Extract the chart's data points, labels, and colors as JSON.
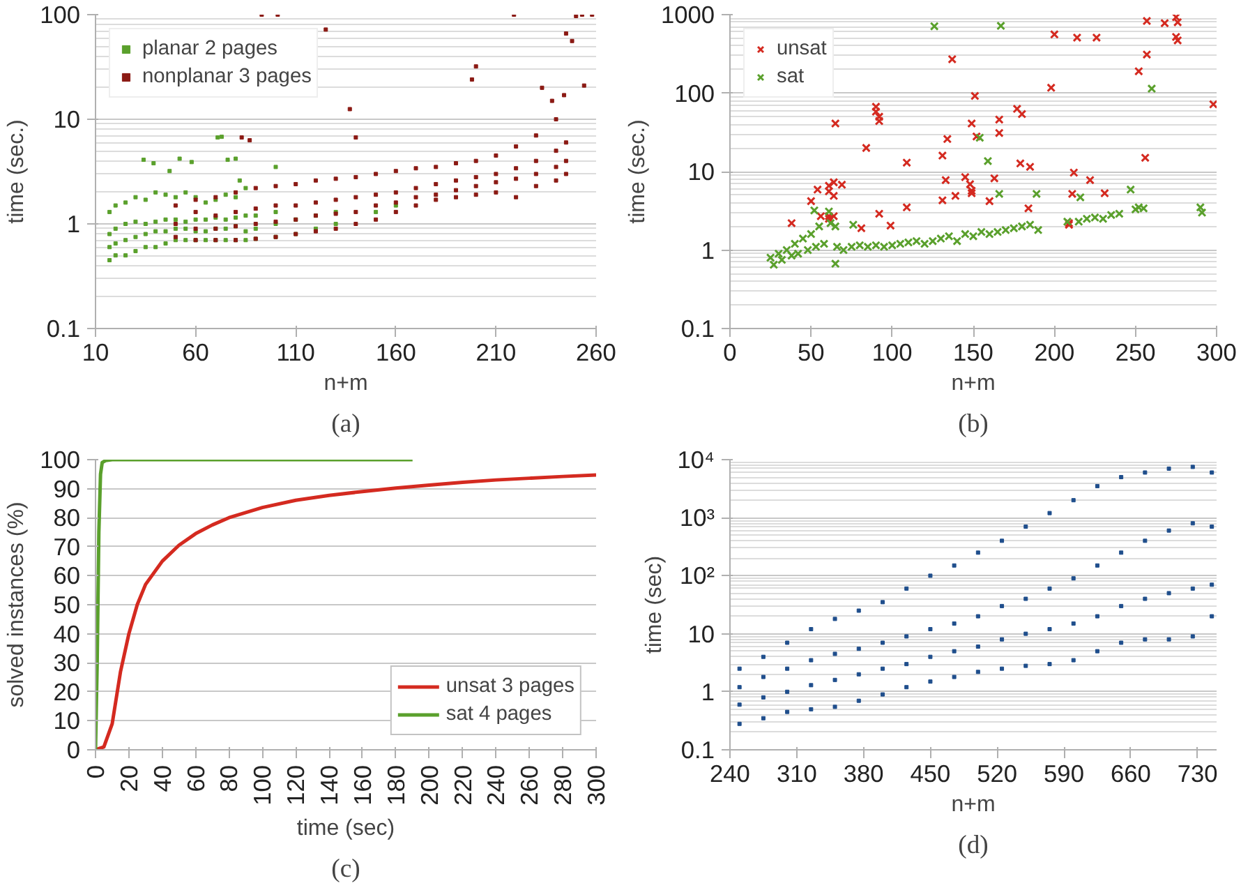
{
  "chart_data": [
    {
      "type": "scatter",
      "xlabel": "n+m",
      "ylabel": "time (sec.)",
      "annotations": [
        "(a)"
      ],
      "xlim": [
        10,
        260
      ],
      "xticks": [
        10,
        60,
        110,
        160,
        210,
        260
      ],
      "ylim": [
        0.1,
        100
      ],
      "yticks": [
        0.1,
        1,
        10,
        100
      ],
      "log": "y",
      "grid": true,
      "legend": "top left",
      "marker": "square",
      "series": [
        {
          "name": "planar 2 pages",
          "color": "#5aa02c",
          "x": [
            17,
            17,
            17,
            17,
            20,
            20,
            20,
            20,
            25,
            25,
            25,
            25,
            30,
            30,
            30,
            30,
            35,
            35,
            35,
            35,
            40,
            40,
            40,
            40,
            45,
            45,
            45,
            45,
            50,
            50,
            50,
            50,
            55,
            55,
            55,
            55,
            60,
            60,
            60,
            60,
            65,
            65,
            65,
            65,
            70,
            70,
            70,
            70,
            75,
            75,
            75,
            75,
            80,
            80,
            80,
            80,
            85,
            85,
            85,
            85,
            90,
            90,
            90,
            100,
            100,
            100,
            110,
            110,
            120,
            120,
            130,
            130,
            150,
            160,
            34,
            39,
            47,
            52,
            58,
            71,
            73,
            76,
            80,
            82,
            100
          ],
          "values": [
            0.45,
            0.6,
            0.8,
            1.3,
            0.5,
            0.65,
            0.9,
            1.5,
            0.5,
            0.7,
            1.0,
            1.6,
            0.55,
            0.75,
            1.05,
            1.8,
            0.6,
            0.8,
            1.0,
            1.7,
            0.6,
            0.85,
            1.05,
            2.0,
            0.65,
            0.85,
            1.1,
            1.9,
            0.7,
            0.9,
            1.1,
            1.8,
            0.7,
            0.9,
            1.05,
            2.0,
            0.7,
            0.85,
            1.1,
            1.8,
            0.7,
            0.85,
            1.1,
            1.6,
            0.7,
            0.9,
            1.15,
            1.7,
            0.7,
            0.9,
            1.1,
            1.9,
            0.7,
            0.95,
            1.15,
            1.8,
            0.7,
            0.85,
            1.2,
            2.2,
            0.72,
            0.9,
            1.2,
            0.75,
            1.0,
            1.3,
            0.8,
            1.1,
            0.9,
            1.2,
            1.0,
            1.3,
            1.3,
            1.5,
            4.1,
            3.8,
            3.2,
            4.2,
            3.9,
            6.7,
            6.8,
            4.1,
            4.2,
            2.6,
            3.5
          ]
        },
        {
          "name": "nonplanar 3 pages",
          "color": "#8b1a14",
          "x": [
            50,
            50,
            50,
            60,
            60,
            60,
            60,
            70,
            70,
            70,
            70,
            80,
            80,
            80,
            80,
            90,
            90,
            90,
            90,
            100,
            100,
            100,
            100,
            110,
            110,
            110,
            110,
            120,
            120,
            120,
            120,
            130,
            130,
            130,
            130,
            140,
            140,
            140,
            140,
            150,
            150,
            150,
            150,
            160,
            160,
            160,
            160,
            170,
            170,
            170,
            170,
            180,
            180,
            180,
            180,
            190,
            190,
            190,
            190,
            200,
            200,
            200,
            200,
            210,
            210,
            210,
            210,
            220,
            220,
            220,
            220,
            230,
            230,
            230,
            230,
            240,
            240,
            240,
            240,
            245,
            245,
            245,
            93,
            101,
            125,
            137,
            140,
            83,
            87,
            200,
            198,
            219,
            233,
            238,
            244,
            245,
            248,
            253,
            258,
            254,
            250
          ],
          "values": [
            0.75,
            1.0,
            1.5,
            0.7,
            0.9,
            1.3,
            1.7,
            0.7,
            0.9,
            1.2,
            1.8,
            0.7,
            0.95,
            1.3,
            2.0,
            0.72,
            1.0,
            1.4,
            2.2,
            0.75,
            1.05,
            1.5,
            2.3,
            0.8,
            1.1,
            1.5,
            2.4,
            0.85,
            1.2,
            1.6,
            2.6,
            0.9,
            1.25,
            1.7,
            2.7,
            1.0,
            1.3,
            1.8,
            2.8,
            1.1,
            1.5,
            1.9,
            3.0,
            1.3,
            1.6,
            2.0,
            3.2,
            1.5,
            1.8,
            2.2,
            3.4,
            1.7,
            1.9,
            2.4,
            3.5,
            1.8,
            2.1,
            2.6,
            3.8,
            1.9,
            2.3,
            2.8,
            4.0,
            2.0,
            2.5,
            3.0,
            4.5,
            1.8,
            2.7,
            3.4,
            5.5,
            2.3,
            3.0,
            4.0,
            7.0,
            2.6,
            3.5,
            5.0,
            10,
            3.0,
            4.0,
            6.0,
            100,
            100,
            72,
            12.5,
            6.7,
            6.7,
            6.3,
            32,
            24,
            100,
            20,
            15,
            17,
            66,
            56,
            100,
            100,
            21,
            97
          ]
        }
      ]
    },
    {
      "type": "scatter",
      "xlabel": "n+m",
      "ylabel": "time (sec.)",
      "annotations": [
        "(b)"
      ],
      "xlim": [
        0,
        300
      ],
      "xticks": [
        0,
        50,
        100,
        150,
        200,
        250,
        300
      ],
      "ylim": [
        0.1,
        1000
      ],
      "yticks": [
        0.1,
        1,
        10,
        100,
        1000
      ],
      "log": "y",
      "grid": true,
      "legend": "top left",
      "marker": "cross",
      "series": [
        {
          "name": "unsat",
          "color": "#d42a20",
          "x": [
            137,
            151,
            198,
            200,
            214,
            226,
            257,
            268,
            275,
            276,
            275,
            276,
            257,
            252,
            298,
            256,
            65,
            90,
            90,
            92,
            92,
            84,
            109,
            131,
            134,
            149,
            152,
            166,
            166,
            177,
            180,
            179,
            185,
            163,
            145,
            148,
            149,
            149,
            133,
            131,
            139,
            160,
            184,
            109,
            92,
            99,
            81,
            212,
            211,
            222,
            231,
            209,
            209,
            38,
            50,
            54,
            61,
            61,
            64,
            64,
            69,
            56,
            61,
            64,
            61
          ],
          "values": [
            270,
            92,
            117,
            560,
            510,
            510,
            830,
            780,
            930,
            800,
            520,
            470,
            310,
            190,
            72,
            15,
            41,
            67,
            58,
            44,
            50,
            20,
            13,
            16,
            26,
            41,
            28,
            46,
            31,
            63,
            54,
            12.7,
            11.5,
            8.2,
            8.5,
            6.9,
            5.7,
            5.3,
            7.8,
            4.3,
            4.9,
            4.2,
            3.4,
            3.5,
            2.9,
            2.05,
            1.9,
            9.7,
            5.2,
            7.8,
            5.3,
            2.2,
            2.1,
            2.2,
            4.2,
            5.9,
            6.6,
            5.6,
            4.9,
            7.3,
            6.8,
            2.7,
            2.7,
            2.7,
            2.5
          ]
        },
        {
          "name": "sat",
          "color": "#5aa02c",
          "x": [
            25,
            27,
            30,
            32,
            35,
            38,
            40,
            42,
            45,
            48,
            50,
            53,
            55,
            58,
            62,
            66,
            70,
            75,
            80,
            85,
            90,
            95,
            100,
            105,
            110,
            115,
            120,
            125,
            130,
            135,
            140,
            145,
            150,
            155,
            160,
            165,
            170,
            175,
            180,
            185,
            190,
            208,
            215,
            220,
            225,
            230,
            235,
            240,
            250,
            252,
            255,
            76,
            65,
            126,
            167,
            260,
            154,
            159,
            166,
            189,
            216,
            247,
            290,
            291,
            65,
            52,
            61
          ],
          "values": [
            0.8,
            0.65,
            0.9,
            0.75,
            1.0,
            0.85,
            1.2,
            0.9,
            1.4,
            1.0,
            1.6,
            1.1,
            2.0,
            1.2,
            2.2,
            1.1,
            1.0,
            1.1,
            1.15,
            1.1,
            1.15,
            1.1,
            1.15,
            1.2,
            1.25,
            1.3,
            1.2,
            1.3,
            1.4,
            1.5,
            1.3,
            1.6,
            1.5,
            1.7,
            1.6,
            1.7,
            1.8,
            1.9,
            2.0,
            2.1,
            1.8,
            2.3,
            2.3,
            2.5,
            2.6,
            2.5,
            2.8,
            2.9,
            3.3,
            3.5,
            3.4,
            2.1,
            2.0,
            710,
            720,
            114,
            27,
            13.6,
            5.2,
            5.2,
            4.7,
            5.9,
            3.5,
            3.0,
            0.67,
            3.2,
            3.1
          ]
        }
      ]
    },
    {
      "type": "line",
      "xlabel": "time (sec)",
      "ylabel": "solved instances (%)",
      "annotations": [
        "(c)"
      ],
      "xlim": [
        0,
        300
      ],
      "xticks": [
        0,
        20,
        40,
        60,
        80,
        100,
        120,
        140,
        160,
        180,
        200,
        220,
        240,
        260,
        280,
        300
      ],
      "ylim": [
        0,
        100
      ],
      "yticks": [
        0,
        10,
        20,
        30,
        40,
        50,
        60,
        70,
        80,
        90,
        100
      ],
      "grid": "y",
      "legend": "bottom right",
      "series": [
        {
          "name": "unsat 3 pages",
          "color": "#d42a20",
          "x": [
            0,
            5,
            10,
            15,
            20,
            25,
            30,
            40,
            50,
            60,
            70,
            80,
            100,
            120,
            140,
            160,
            180,
            200,
            220,
            240,
            260,
            280,
            300
          ],
          "values": [
            0,
            1,
            9,
            27,
            40,
            50,
            57,
            65,
            70.5,
            74.5,
            77.5,
            80,
            83.5,
            86,
            87.7,
            89,
            90.2,
            91.2,
            92.2,
            93,
            93.6,
            94.2,
            94.7
          ]
        },
        {
          "name": "sat 4 pages",
          "color": "#5aa02c",
          "x": [
            0,
            1,
            2,
            3,
            4,
            6,
            10,
            190
          ],
          "values": [
            0,
            30,
            75,
            95,
            99,
            99.7,
            100,
            100
          ]
        }
      ]
    },
    {
      "type": "scatter",
      "xlabel": "n+m",
      "ylabel": "time (sec)",
      "annotations": [
        "(d)"
      ],
      "xlim": [
        240,
        750
      ],
      "xticks": [
        240,
        310,
        380,
        450,
        520,
        590,
        660,
        730
      ],
      "ylim": [
        0.1,
        10000
      ],
      "yticks": [
        0.1,
        1,
        10,
        {
          "value": 100,
          "label": "10²"
        },
        {
          "value": 1000,
          "label": "10³"
        },
        {
          "value": 10000,
          "label": "10⁴"
        }
      ],
      "log": "y",
      "grid": true,
      "marker": "square",
      "series": [
        {
          "color": "#1f4e8c",
          "x": [
            250,
            250,
            250,
            250,
            275,
            275,
            275,
            275,
            300,
            300,
            300,
            300,
            325,
            325,
            325,
            325,
            350,
            350,
            350,
            350,
            375,
            375,
            375,
            375,
            400,
            400,
            400,
            400,
            425,
            425,
            425,
            425,
            450,
            450,
            450,
            450,
            475,
            475,
            475,
            475,
            500,
            500,
            500,
            500,
            525,
            525,
            525,
            525,
            550,
            550,
            550,
            550,
            575,
            575,
            575,
            575,
            600,
            600,
            600,
            600,
            625,
            625,
            625,
            625,
            650,
            650,
            650,
            650,
            675,
            675,
            675,
            675,
            700,
            700,
            700,
            700,
            725,
            725,
            725,
            725,
            745,
            745,
            745,
            745
          ],
          "values": [
            0.28,
            0.6,
            1.2,
            2.5,
            0.35,
            0.8,
            1.8,
            4,
            0.45,
            1.0,
            2.5,
            7,
            0.5,
            1.3,
            3.5,
            12,
            0.55,
            1.6,
            4.5,
            18,
            0.7,
            2,
            5.5,
            25,
            0.9,
            2.5,
            7,
            35,
            1.2,
            3,
            9,
            60,
            1.5,
            4,
            12,
            100,
            1.8,
            5,
            15,
            150,
            2.2,
            6,
            20,
            250,
            2.5,
            8,
            30,
            400,
            2.8,
            10,
            40,
            700,
            3,
            12,
            60,
            1200,
            3.5,
            15,
            90,
            2000,
            5,
            20,
            150,
            3500,
            7,
            30,
            250,
            5000,
            8,
            40,
            400,
            6000,
            8,
            50,
            600,
            7000,
            9,
            60,
            800,
            7500,
            20,
            70,
            700,
            6000
          ]
        }
      ]
    }
  ]
}
